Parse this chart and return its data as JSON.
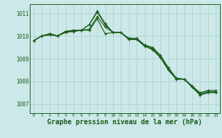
{
  "bg_color": "#cce8e8",
  "grid_color": "#aacccc",
  "line_color": "#1a5c1a",
  "xlabel": "Graphe pression niveau de la mer (hPa)",
  "xlabel_fontsize": 7.0,
  "yticks": [
    1007,
    1008,
    1009,
    1010,
    1011
  ],
  "xticks": [
    0,
    1,
    2,
    3,
    4,
    5,
    6,
    7,
    8,
    9,
    10,
    11,
    12,
    13,
    14,
    15,
    16,
    17,
    18,
    19,
    20,
    21,
    22,
    23
  ],
  "xlim": [
    -0.5,
    23.5
  ],
  "ylim": [
    1006.6,
    1011.4
  ],
  "series": [
    [
      1009.8,
      1010.0,
      1010.05,
      1010.0,
      1010.15,
      1010.2,
      1010.25,
      1010.25,
      1010.75,
      1010.1,
      1010.15,
      1010.15,
      1009.85,
      1009.85,
      1009.6,
      1009.45,
      1009.1,
      1008.55,
      1008.1,
      1008.1,
      1007.8,
      1007.45,
      1007.55,
      1007.55
    ],
    [
      1009.8,
      1010.0,
      1010.1,
      1010.0,
      1010.2,
      1010.2,
      1010.25,
      1010.3,
      1010.85,
      1010.4,
      1010.15,
      1010.15,
      1009.9,
      1009.9,
      1009.6,
      1009.5,
      1009.15,
      1008.6,
      1008.15,
      1008.1,
      1007.8,
      1007.5,
      1007.6,
      1007.6
    ],
    [
      1009.8,
      1010.0,
      1010.1,
      1010.0,
      1010.2,
      1010.25,
      1010.25,
      1010.5,
      1011.05,
      1010.5,
      1010.15,
      1010.15,
      1009.85,
      1009.85,
      1009.55,
      1009.4,
      1009.05,
      1008.5,
      1008.1,
      1008.1,
      1007.75,
      1007.4,
      1007.5,
      1007.5
    ],
    [
      1009.8,
      1010.0,
      1010.05,
      1010.0,
      1010.2,
      1010.25,
      1010.25,
      1010.5,
      1011.1,
      1010.55,
      1010.15,
      1010.15,
      1009.85,
      1009.85,
      1009.55,
      1009.4,
      1009.05,
      1008.5,
      1008.1,
      1008.1,
      1007.75,
      1007.4,
      1007.5,
      1007.5
    ]
  ],
  "marker": "+",
  "marker_size": 3.5,
  "linewidth": 0.85
}
